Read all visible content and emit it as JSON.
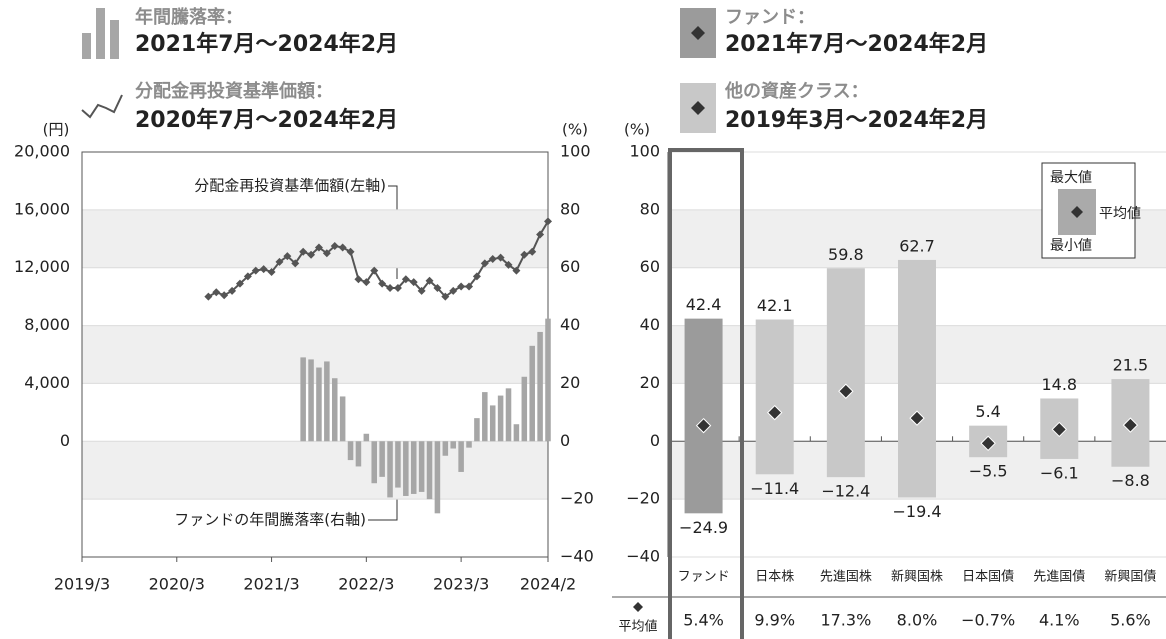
{
  "chart_data": [
    {
      "type": "combo",
      "y_unit": "(円)",
      "y2_unit": "(%)",
      "categories": [
        "2019/3",
        null,
        null,
        null,
        null,
        null,
        null,
        null,
        null,
        null,
        null,
        null,
        "2020/3",
        null,
        null,
        null,
        null,
        null,
        null,
        null,
        null,
        null,
        null,
        null,
        "2021/3",
        null,
        null,
        null,
        null,
        null,
        null,
        null,
        null,
        null,
        null,
        null,
        "2022/3",
        null,
        null,
        null,
        null,
        null,
        null,
        null,
        null,
        null,
        null,
        null,
        "2023/3",
        null,
        null,
        null,
        null,
        null,
        null,
        null,
        null,
        null,
        null,
        "2024/2"
      ],
      "series": [
        {
          "name": "年間騰落率：",
          "period": "2021年7月～2024年2月",
          "type": "bar",
          "axis": "y2",
          "color": "#a6a6a6",
          "values": [
            null,
            null,
            null,
            null,
            null,
            null,
            null,
            null,
            null,
            null,
            null,
            null,
            null,
            null,
            null,
            null,
            null,
            null,
            null,
            null,
            null,
            null,
            null,
            null,
            null,
            null,
            null,
            null,
            29.0,
            28.3,
            25.5,
            27.6,
            21.8,
            15.5,
            -6.5,
            -8.7,
            2.6,
            -14.5,
            -12.3,
            -19.4,
            -16.0,
            -18.9,
            -18.2,
            -17.5,
            -20.0,
            -24.9,
            -5.0,
            -2.5,
            -10.6,
            -2.2,
            8.0,
            17.0,
            12.4,
            15.8,
            18.3,
            5.9,
            22.3,
            33.0,
            37.8,
            42.4
          ]
        },
        {
          "name": "分配金再投資基準価額：",
          "period": "2020年7月～2024年2月",
          "type": "line",
          "axis": "y",
          "color": "#555555",
          "values": [
            null,
            null,
            null,
            null,
            null,
            null,
            null,
            null,
            null,
            null,
            null,
            null,
            null,
            null,
            null,
            null,
            10000,
            10300,
            10100,
            10400,
            10900,
            11400,
            11800,
            11900,
            11700,
            12400,
            12800,
            12300,
            13100,
            12900,
            13400,
            13000,
            13500,
            13400,
            13100,
            11200,
            11000,
            11800,
            10900,
            10600,
            10600,
            11200,
            11000,
            10400,
            11100,
            10600,
            10000,
            10400,
            10700,
            10700,
            11400,
            12300,
            12600,
            12700,
            12200,
            11800,
            12900,
            13100,
            14300,
            15200
          ]
        }
      ],
      "annotations": [
        "分配金再投資基準価額(左軸)",
        "ファンドの年間騰落率(右軸)"
      ],
      "ylim": [
        -8000,
        20000
      ],
      "yticks": [
        0,
        {
          "value": 4000,
          "label": "4,000"
        },
        {
          "value": 8000,
          "label": "8,000"
        },
        {
          "value": 12000,
          "label": "12,000"
        },
        {
          "value": 16000,
          "label": "16,000"
        },
        {
          "value": 20000,
          "label": "20,000"
        }
      ],
      "y2lim": [
        -40,
        100
      ],
      "y2ticks": [
        100,
        80,
        60,
        40,
        20,
        0,
        {
          "value": -20,
          "label": "−20"
        },
        {
          "value": -40,
          "label": "−40"
        }
      ],
      "banded": true
    },
    {
      "type": "range",
      "y_unit": "(%)",
      "legend": [
        {
          "label": "ファンド：",
          "period": "2021年7月～2024年2月"
        },
        {
          "label": "他の資産クラス：",
          "period": "2019年3月～2024年2月"
        }
      ],
      "categories": [
        "ファンド",
        "日本株",
        "先進国株",
        "新興国株",
        "日本国債",
        "先進国債",
        "新興国債"
      ],
      "bar_colors": [
        "#9b9b9b",
        "#c8c8c8",
        "#c8c8c8",
        "#c8c8c8",
        "#c8c8c8",
        "#c8c8c8",
        "#c8c8c8"
      ],
      "series": [
        {
          "name": "最大値",
          "values": [
            42.4,
            42.1,
            59.8,
            62.7,
            5.4,
            14.8,
            21.5
          ]
        },
        {
          "name": "最小値",
          "values": [
            -24.9,
            -11.4,
            -12.4,
            -19.4,
            -5.5,
            -6.1,
            -8.8
          ],
          "value_labels": [
            "−24.9",
            "−11.4",
            "−12.4",
            "−19.4",
            "−5.5",
            "−6.1",
            "−8.8"
          ]
        },
        {
          "name": "平均値",
          "color": "#333333",
          "values": [
            5.4,
            9.9,
            17.3,
            8.0,
            -0.7,
            4.1,
            5.6
          ],
          "value_labels": [
            "5.4%",
            "9.9%",
            "17.3%",
            "8.0%",
            "−0.7%",
            "4.1%",
            "5.6%"
          ]
        }
      ],
      "ylim": [
        -40,
        100
      ],
      "yticks": [
        100,
        80,
        60,
        40,
        20,
        0,
        {
          "value": -20,
          "label": "−20"
        },
        {
          "value": -40,
          "label": "−40"
        }
      ],
      "banded": true
    }
  ]
}
